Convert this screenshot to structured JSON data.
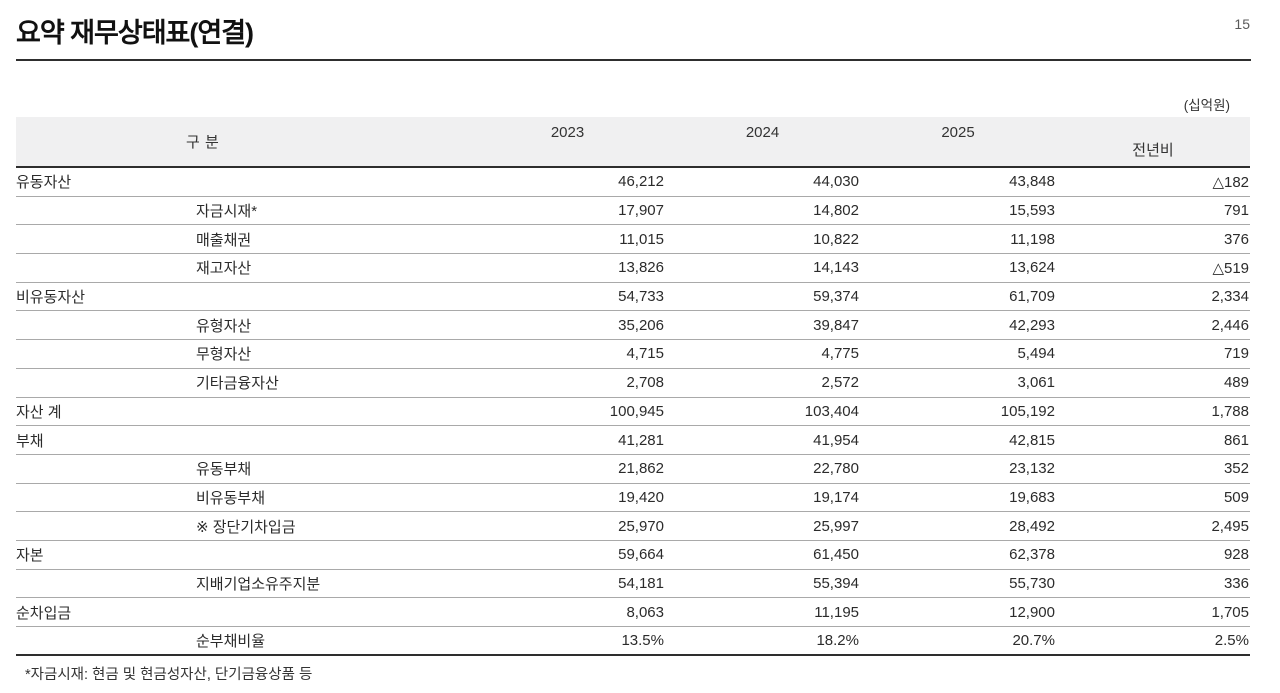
{
  "page": {
    "title": "요약 재무상태표(연결)",
    "page_number": "15",
    "unit_label": "(십억원)",
    "footnote": "*자금시재: 현금 및 현금성자산, 단기금융상품 등"
  },
  "colors": {
    "rule": "#2e2e2e",
    "row_separator": "#a9a9a9",
    "header_bg": "#f0f0f1",
    "title_text": "#111111",
    "body_text": "#2b2b2b"
  },
  "table": {
    "header": {
      "label_col": "구 분",
      "years": [
        "2023",
        "2024",
        "2025"
      ],
      "yoy_label": "전년비"
    },
    "rows": [
      {
        "label": "유동자산",
        "indent": false,
        "values": [
          "46,212",
          "44,030",
          "43,848",
          "△182"
        ]
      },
      {
        "label": "자금시재*",
        "indent": true,
        "values": [
          "17,907",
          "14,802",
          "15,593",
          "791"
        ]
      },
      {
        "label": "매출채권",
        "indent": true,
        "values": [
          "11,015",
          "10,822",
          "11,198",
          "376"
        ]
      },
      {
        "label": "재고자산",
        "indent": true,
        "values": [
          "13,826",
          "14,143",
          "13,624",
          "△519"
        ]
      },
      {
        "label": "비유동자산",
        "indent": false,
        "values": [
          "54,733",
          "59,374",
          "61,709",
          "2,334"
        ]
      },
      {
        "label": "유형자산",
        "indent": true,
        "values": [
          "35,206",
          "39,847",
          "42,293",
          "2,446"
        ]
      },
      {
        "label": "무형자산",
        "indent": true,
        "values": [
          "4,715",
          "4,775",
          "5,494",
          "719"
        ]
      },
      {
        "label": "기타금융자산",
        "indent": true,
        "values": [
          "2,708",
          "2,572",
          "3,061",
          "489"
        ]
      },
      {
        "label": "자산 계",
        "indent": false,
        "values": [
          "100,945",
          "103,404",
          "105,192",
          "1,788"
        ]
      },
      {
        "label": "부채",
        "indent": false,
        "values": [
          "41,281",
          "41,954",
          "42,815",
          "861"
        ]
      },
      {
        "label": "유동부채",
        "indent": true,
        "values": [
          "21,862",
          "22,780",
          "23,132",
          "352"
        ]
      },
      {
        "label": "비유동부채",
        "indent": true,
        "values": [
          "19,420",
          "19,174",
          "19,683",
          "509"
        ]
      },
      {
        "label": "※ 장단기차입금",
        "indent": true,
        "values": [
          "25,970",
          "25,997",
          "28,492",
          "2,495"
        ]
      },
      {
        "label": "자본",
        "indent": false,
        "values": [
          "59,664",
          "61,450",
          "62,378",
          "928"
        ]
      },
      {
        "label": "지배기업소유주지분",
        "indent": true,
        "values": [
          "54,181",
          "55,394",
          "55,730",
          "336"
        ]
      },
      {
        "label": "순차입금",
        "indent": false,
        "values": [
          "8,063",
          "11,195",
          "12,900",
          "1,705"
        ]
      },
      {
        "label": "순부채비율",
        "indent": true,
        "values": [
          "13.5%",
          "18.2%",
          "20.7%",
          "2.5%"
        ]
      }
    ]
  }
}
